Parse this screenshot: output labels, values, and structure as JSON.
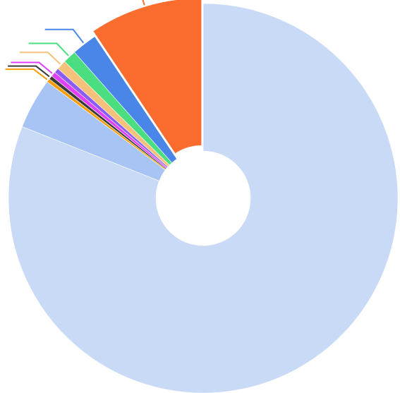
{
  "chart_data": {
    "type": "pie",
    "donut": true,
    "start_angle_deg": 0,
    "direction": "clockwise",
    "slices": [
      {
        "value": 81.0,
        "color": "#c9daf6",
        "leader": false
      },
      {
        "value": 4.2,
        "color": "#a8c4f4",
        "leader": false
      },
      {
        "value": 0.3,
        "color": "#f59e0b",
        "leader": true,
        "leader_color": "#f59e0b"
      },
      {
        "value": 0.3,
        "color": "#3a3a3a",
        "leader": true,
        "leader_color": "#3a3a3a"
      },
      {
        "value": 0.4,
        "color": "#e040fb",
        "leader": true,
        "leader_color": "#e040fb"
      },
      {
        "value": 0.4,
        "color": "#8b5cf6",
        "leader": false
      },
      {
        "value": 0.8,
        "color": "#f4c27a",
        "leader": true,
        "leader_color": "#f4c27a"
      },
      {
        "value": 1.1,
        "color": "#4ade80",
        "leader": true,
        "leader_color": "#4ade80"
      },
      {
        "value": 2.1,
        "color": "#4a86e8",
        "leader": true,
        "leader_color": "#4a86e8"
      },
      {
        "value": 9.4,
        "color": "#fa6d2e",
        "leader": true,
        "leader_color": "#fa6d2e",
        "exploded": true
      }
    ],
    "colors": {
      "background": "#ffffff",
      "separator": "#ffffff"
    }
  }
}
